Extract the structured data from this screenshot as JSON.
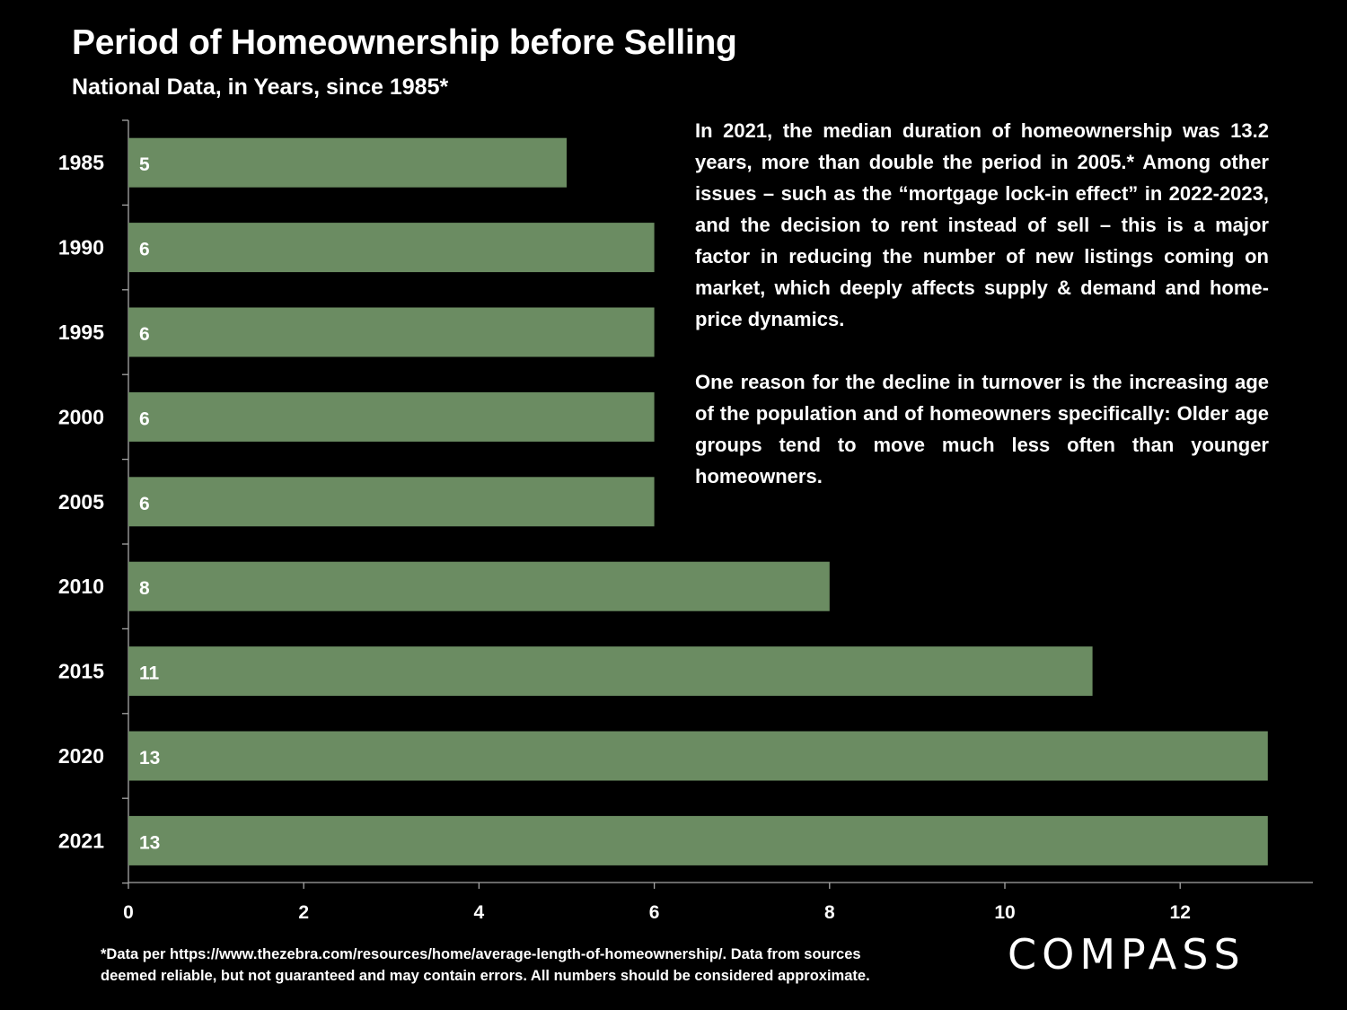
{
  "header": {
    "title": "Period of Homeownership before Selling",
    "subtitle": "National Data, in Years, since 1985*"
  },
  "note": {
    "paragraph_1": "In 2021, the median duration of homeownership was 13.2 years, more than double the period in 2005.* Among other issues – such as the “mortgage lock-in effect” in 2022-2023, and the decision to rent instead of sell – this is a major factor in reducing the number of new listings coming on market, which deeply affects supply & demand and home-price dynamics.",
    "paragraph_2": "One reason for the decline in turnover is the increasing age of the population and of homeowners specifically:  Older age groups tend to move much less often than younger homeowners."
  },
  "footnote": {
    "line_1": "*Data per https://www.thezebra.com/resources/home/average-length-of-homeownership/. Data from sources",
    "line_2": "deemed reliable, but not guaranteed and may contain errors. All numbers should be considered approximate."
  },
  "brand": {
    "logo_text": "COMPASS"
  },
  "colors": {
    "background": "#000000",
    "bar": "#6b8c62",
    "text": "#ffffff",
    "axis": "#a6a6a6"
  },
  "chart_data": {
    "type": "bar",
    "orientation": "horizontal",
    "categories": [
      "1985",
      "1990",
      "1995",
      "2000",
      "2005",
      "2010",
      "2015",
      "2020",
      "2021"
    ],
    "values": [
      5,
      6,
      6,
      6,
      6,
      8,
      11,
      13,
      13
    ],
    "data_labels": [
      "5",
      "6",
      "6",
      "6",
      "6",
      "8",
      "11",
      "13",
      "13"
    ],
    "xticks": [
      0,
      2,
      4,
      6,
      8,
      10,
      12
    ],
    "xlim": [
      0,
      13.5
    ],
    "grid": false,
    "legend": "none"
  }
}
